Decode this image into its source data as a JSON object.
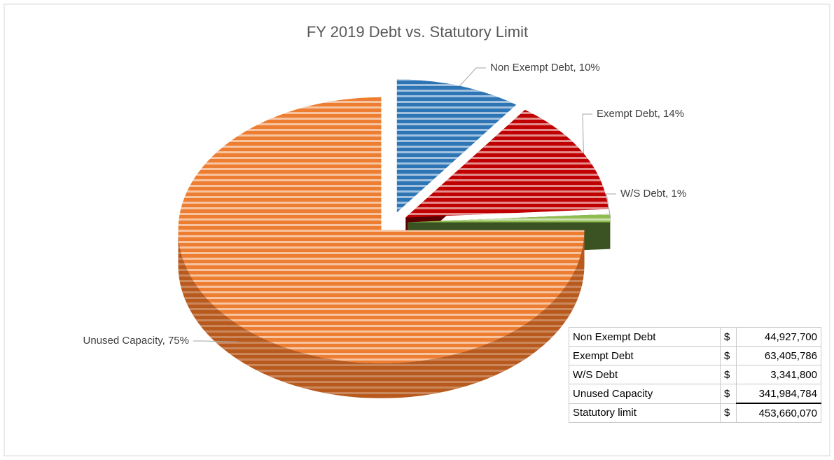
{
  "chart_data": {
    "type": "pie",
    "title": "FY 2019 Debt vs. Statutory Limit",
    "categories": [
      "Non Exempt Debt",
      "Exempt Debt",
      "W/S Debt",
      "Unused Capacity"
    ],
    "values": [
      10,
      14,
      1,
      75
    ],
    "value_labels": [
      "Non Exempt Debt, 10%",
      "Exempt Debt, 14%",
      "W/S Debt, 1%",
      "Unused Capacity, 75%"
    ],
    "colors": [
      "#2e75b6",
      "#c00000",
      "#8fbc4f",
      "#ed7d31"
    ],
    "side_colors": [
      "#1f4e79",
      "#5a0000",
      "#3b5323",
      "#b85a1e"
    ]
  },
  "table": {
    "rows": [
      [
        "Non Exempt Debt",
        "$",
        "44,927,700"
      ],
      [
        "Exempt Debt",
        "$",
        "63,405,786"
      ],
      [
        "W/S Debt",
        "$",
        "3,341,800"
      ],
      [
        "Unused Capacity",
        "$",
        "341,984,784"
      ],
      [
        "Statutory limit",
        "$",
        "453,660,070"
      ]
    ]
  }
}
